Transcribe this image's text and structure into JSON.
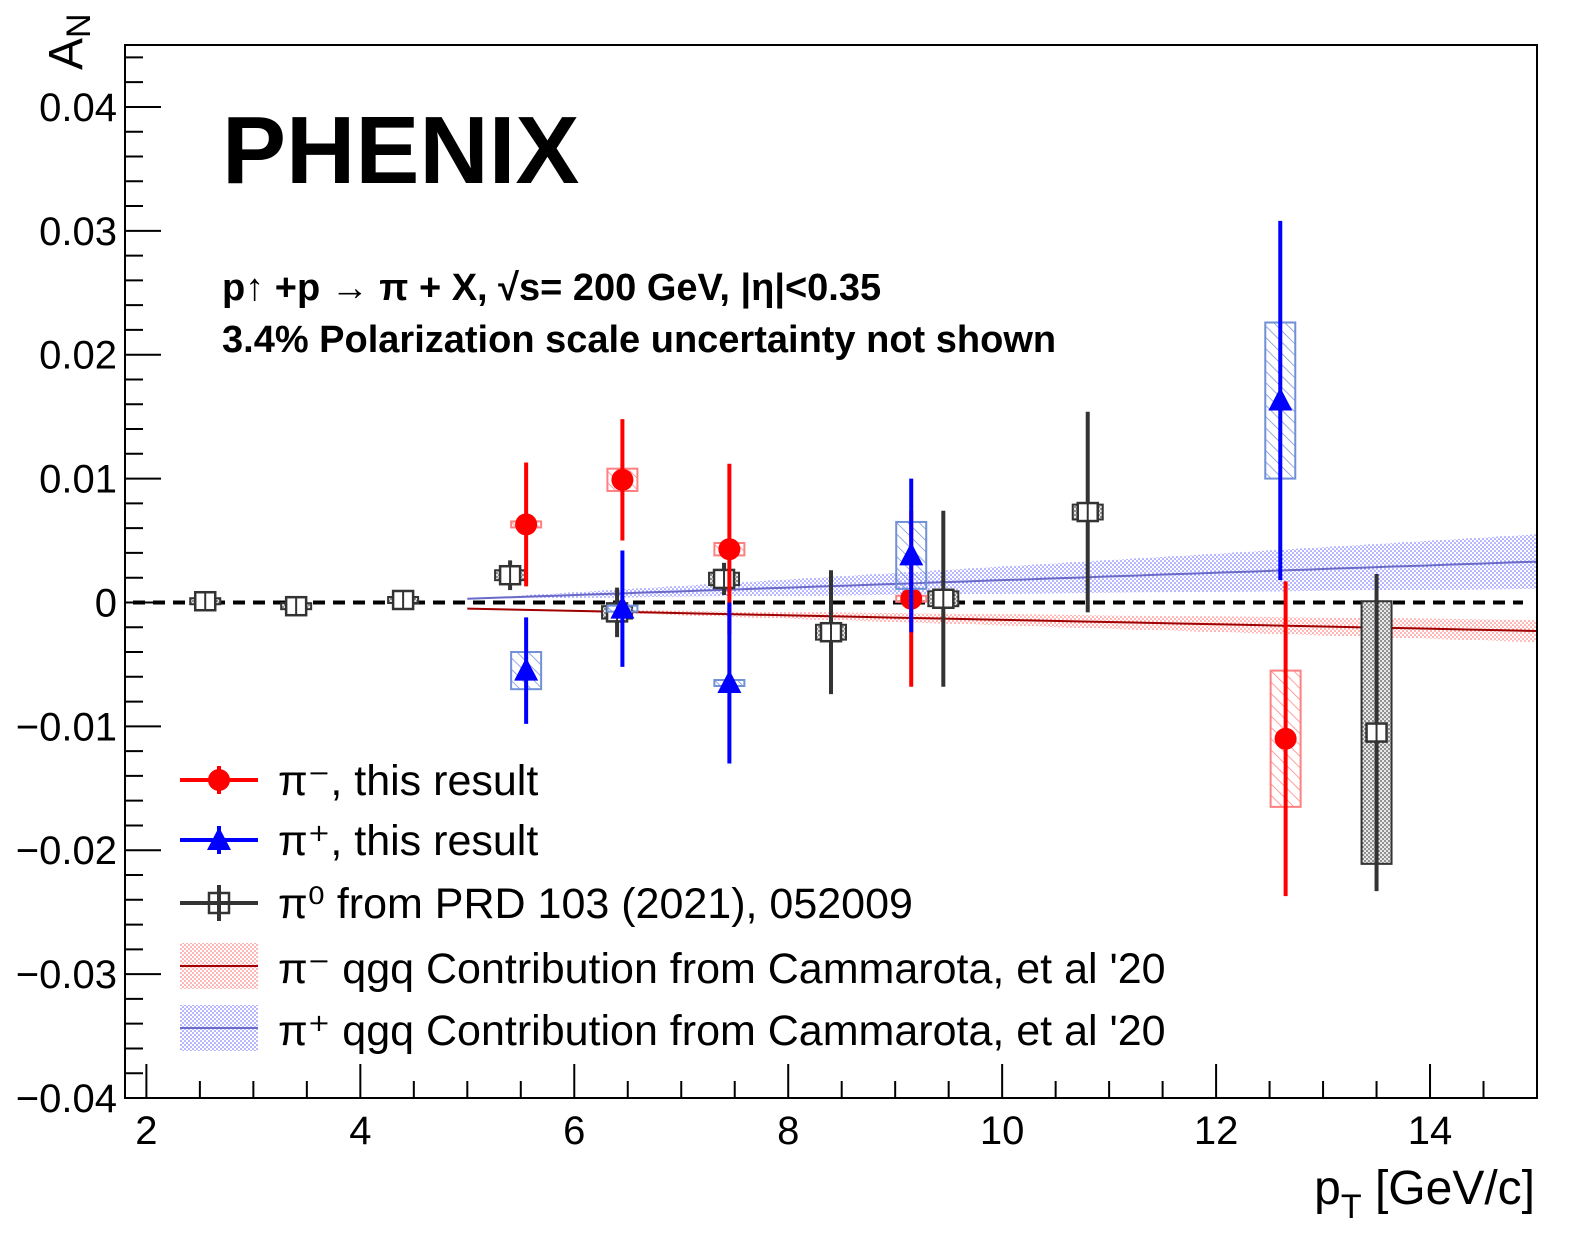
{
  "header": {
    "brand": "PHENIX",
    "reaction_line": "p↑ +p  →  π + X, √s= 200 GeV, |η|<0.35",
    "note": "3.4% Polarization scale uncertainty not shown"
  },
  "axes": {
    "xlabel": "p_T [GeV/c]",
    "ylabel": "A_N",
    "xlim": [
      1.8,
      15.0
    ],
    "ylim": [
      -0.04,
      0.045
    ],
    "x_ticks": [
      "2",
      "4",
      "6",
      "8",
      "10",
      "12",
      "14"
    ],
    "y_ticks": [
      "0.04",
      "0.03",
      "0.02",
      "0.01",
      "0",
      "−0.01",
      "−0.02",
      "−0.03",
      "−0.04"
    ]
  },
  "legend": {
    "pim": "π⁻, this result",
    "pip": "π⁺, this result",
    "pi0": "π⁰ from PRD 103 (2021), 052009",
    "pim_band": "π⁻ qgq Contribution from Cammarota, et al '20",
    "pip_band": "π⁺ qgq Contribution from Cammarota, et al '20"
  },
  "colors": {
    "pim": "#ff0000",
    "pip": "#0000ff",
    "pi0": "#333333",
    "pim_band": "#a00000",
    "pip_band": "#6a6ac8"
  },
  "chart_data": {
    "type": "scatter",
    "series": [
      {
        "name": "π⁻, this result",
        "marker": "circle",
        "points": [
          {
            "x": 5.55,
            "y": 0.0063,
            "stat": 0.005,
            "sys": 0.0001
          },
          {
            "x": 6.45,
            "y": 0.0099,
            "stat": 0.0049,
            "sys": 0.0009
          },
          {
            "x": 7.45,
            "y": 0.0043,
            "stat": 0.0069,
            "sys": 0.0005
          },
          {
            "x": 9.15,
            "y": 0.0003,
            "stat": 0.0071,
            "sys": 0.0001
          },
          {
            "x": 12.65,
            "y": -0.011,
            "stat": 0.0127,
            "sys": 0.0055
          }
        ]
      },
      {
        "name": "π⁺, this result",
        "marker": "triangle",
        "points": [
          {
            "x": 5.55,
            "y": -0.0055,
            "stat": 0.0043,
            "sys": 0.0015
          },
          {
            "x": 6.45,
            "y": -0.0005,
            "stat": 0.0047,
            "sys": 0.0002
          },
          {
            "x": 7.45,
            "y": -0.0065,
            "stat": 0.0065,
            "sys": 0.0002
          },
          {
            "x": 9.15,
            "y": 0.0038,
            "stat": 0.0062,
            "sys": 0.0027
          },
          {
            "x": 12.6,
            "y": 0.0163,
            "stat": 0.0145,
            "sys": 0.0063
          }
        ]
      },
      {
        "name": "π⁰ from PRD 103 (2021), 052009",
        "marker": "open-square",
        "points": [
          {
            "x": 2.55,
            "y": 0.0001,
            "stat": 0.0002,
            "sys": 0.0002
          },
          {
            "x": 3.4,
            "y": -0.0003,
            "stat": 0.0002,
            "sys": 0.0002
          },
          {
            "x": 4.4,
            "y": 0.0002,
            "stat": 0.0003,
            "sys": 0.0002
          },
          {
            "x": 5.4,
            "y": 0.0022,
            "stat": 0.0012,
            "sys": 0.0004
          },
          {
            "x": 6.4,
            "y": -0.0008,
            "stat": 0.002,
            "sys": 0.0005
          },
          {
            "x": 7.4,
            "y": 0.0019,
            "stat": 0.0013,
            "sys": 0.0005
          },
          {
            "x": 8.4,
            "y": -0.0024,
            "stat": 0.005,
            "sys": 0.0006
          },
          {
            "x": 9.45,
            "y": 0.0003,
            "stat": 0.0071,
            "sys": 0.0006
          },
          {
            "x": 10.8,
            "y": 0.0073,
            "stat": 0.0081,
            "sys": 0.0006
          },
          {
            "x": 13.5,
            "y": -0.0105,
            "stat": 0.0128,
            "sys": 0.0106
          }
        ]
      },
      {
        "name": "π⁻ qgq Contribution from Cammarota, et al '20",
        "type": "band",
        "x": [
          5.0,
          15.0
        ],
        "y": [
          -0.0005,
          -0.0023
        ],
        "band_halfwidth": [
          0.0,
          0.0009
        ]
      },
      {
        "name": "π⁺ qgq Contribution from Cammarota, et al '20",
        "type": "band",
        "x": [
          5.0,
          15.0
        ],
        "y": [
          0.0003,
          0.0033
        ],
        "band_halfwidth": [
          0.0,
          0.0022
        ]
      }
    ],
    "reference_line": {
      "y": 0.0,
      "style": "dashed"
    },
    "grid": false,
    "legend_position": "bottom-left"
  }
}
